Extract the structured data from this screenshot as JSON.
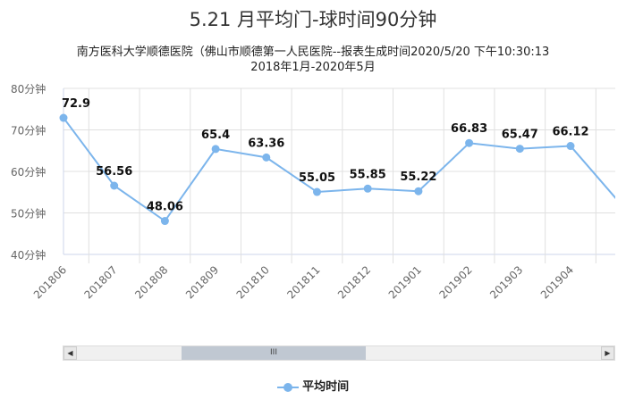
{
  "chart_data": {
    "type": "line",
    "title": "5.21 月平均门-球时间90分钟",
    "subtitle": "南方医科大学顺德医院（佛山市顺德第一人民医院--报表生成时间2020/5/20 下午10:30:13",
    "subtitle2": "2018年1月-2020年5月",
    "categories": [
      "201806",
      "201807",
      "201808",
      "201809",
      "201810",
      "201811",
      "201812",
      "201901",
      "201902",
      "201903",
      "201904"
    ],
    "series": [
      {
        "name": "平均时间",
        "values": [
          72.9,
          56.56,
          48.06,
          65.4,
          63.36,
          55.05,
          55.85,
          55.22,
          66.83,
          65.47,
          66.12
        ],
        "color": "#7cb5ec"
      }
    ],
    "next_value_clipped": 52,
    "ylim": [
      40,
      80
    ],
    "yticks": [
      "40分钟",
      "50分钟",
      "60分钟",
      "70分钟",
      "80分钟"
    ],
    "grid": true,
    "legend": "bottom-center"
  },
  "scrollbar": {
    "left": "◀",
    "right": "▶",
    "thumb": "III"
  }
}
